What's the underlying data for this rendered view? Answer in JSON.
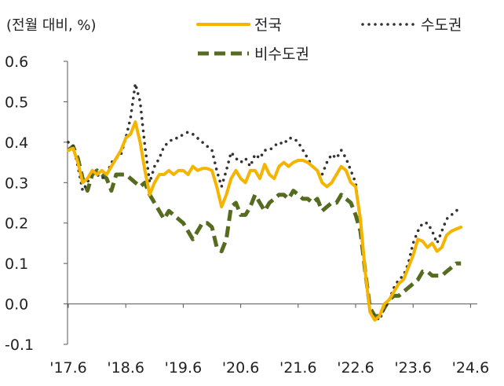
{
  "chart_data": {
    "type": "line",
    "unit_label": "(전월 대비, %)",
    "ylim": [
      -0.1,
      0.6
    ],
    "yticks": [
      -0.1,
      0.0,
      0.1,
      0.2,
      0.3,
      0.4,
      0.5,
      0.6
    ],
    "ytick_labels": [
      "-0.1",
      "0.0",
      "0.1",
      "0.2",
      "0.3",
      "0.4",
      "0.5",
      "0.6"
    ],
    "xtick_positions": [
      0,
      12,
      24,
      36,
      48,
      60,
      72,
      84
    ],
    "xtick_labels": [
      "'17.6",
      "'18.6",
      "'19.6",
      "'20.6",
      "'21.6",
      "'22.6",
      "'23.6",
      "'24.6"
    ],
    "x_start": "2017-06",
    "legend_position": "top",
    "grid": false,
    "series": [
      {
        "name": "전국",
        "color": "#F5B400",
        "style": "solid",
        "values": [
          0.38,
          0.385,
          0.35,
          0.3,
          0.31,
          0.33,
          0.32,
          0.33,
          0.32,
          0.34,
          0.36,
          0.38,
          0.41,
          0.42,
          0.45,
          0.4,
          0.33,
          0.27,
          0.3,
          0.32,
          0.32,
          0.33,
          0.32,
          0.33,
          0.33,
          0.32,
          0.34,
          0.33,
          0.335,
          0.335,
          0.33,
          0.29,
          0.24,
          0.27,
          0.31,
          0.33,
          0.31,
          0.3,
          0.33,
          0.33,
          0.31,
          0.345,
          0.32,
          0.31,
          0.34,
          0.35,
          0.34,
          0.35,
          0.355,
          0.355,
          0.35,
          0.34,
          0.33,
          0.3,
          0.29,
          0.3,
          0.32,
          0.34,
          0.33,
          0.3,
          0.29,
          0.21,
          0.08,
          -0.02,
          -0.04,
          -0.03,
          0.0,
          0.01,
          0.03,
          0.05,
          0.06,
          0.09,
          0.12,
          0.16,
          0.155,
          0.14,
          0.15,
          0.13,
          0.14,
          0.17,
          0.18,
          0.185,
          0.19
        ]
      },
      {
        "name": "수도권",
        "color": "#333333",
        "style": "dotted",
        "values": [
          0.4,
          0.39,
          0.34,
          0.28,
          0.3,
          0.33,
          0.32,
          0.31,
          0.32,
          0.35,
          0.36,
          0.37,
          0.41,
          0.46,
          0.545,
          0.5,
          0.39,
          0.3,
          0.34,
          0.36,
          0.39,
          0.4,
          0.41,
          0.41,
          0.42,
          0.425,
          0.42,
          0.41,
          0.4,
          0.39,
          0.38,
          0.33,
          0.29,
          0.33,
          0.375,
          0.36,
          0.35,
          0.36,
          0.34,
          0.37,
          0.36,
          0.38,
          0.38,
          0.39,
          0.4,
          0.395,
          0.41,
          0.41,
          0.4,
          0.38,
          0.36,
          0.34,
          0.33,
          0.32,
          0.35,
          0.37,
          0.36,
          0.38,
          0.36,
          0.33,
          0.3,
          0.2,
          0.08,
          -0.02,
          -0.03,
          -0.04,
          -0.01,
          0.01,
          0.04,
          0.06,
          0.07,
          0.1,
          0.15,
          0.18,
          0.2,
          0.2,
          0.18,
          0.15,
          0.18,
          0.21,
          0.22,
          0.23,
          0.24
        ]
      },
      {
        "name": "비수도권",
        "color": "#556B1F",
        "style": "dashed",
        "values": [
          0.38,
          0.39,
          0.36,
          0.31,
          0.28,
          0.32,
          0.33,
          0.32,
          0.31,
          0.28,
          0.32,
          0.32,
          0.32,
          0.31,
          0.3,
          0.29,
          0.3,
          0.27,
          0.25,
          0.23,
          0.21,
          0.23,
          0.22,
          0.21,
          0.2,
          0.18,
          0.16,
          0.18,
          0.2,
          0.2,
          0.19,
          0.14,
          0.13,
          0.16,
          0.24,
          0.25,
          0.22,
          0.22,
          0.24,
          0.27,
          0.25,
          0.23,
          0.25,
          0.26,
          0.27,
          0.27,
          0.26,
          0.28,
          0.27,
          0.26,
          0.26,
          0.25,
          0.26,
          0.23,
          0.24,
          0.25,
          0.25,
          0.27,
          0.26,
          0.25,
          0.22,
          0.18,
          0.08,
          -0.01,
          -0.03,
          -0.03,
          -0.01,
          0.01,
          0.02,
          0.02,
          0.03,
          0.04,
          0.05,
          0.06,
          0.08,
          0.08,
          0.07,
          0.07,
          0.07,
          0.08,
          0.09,
          0.1,
          0.1
        ]
      }
    ]
  }
}
